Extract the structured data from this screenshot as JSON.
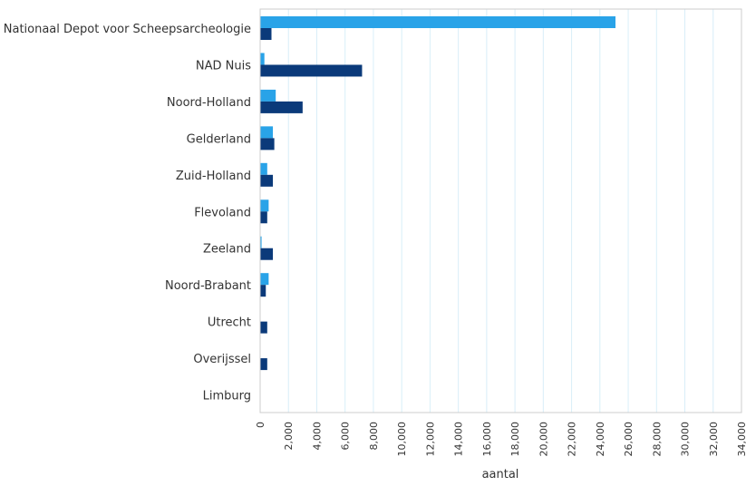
{
  "chart_data": {
    "type": "bar",
    "orientation": "horizontal",
    "xlabel": "aantal",
    "xlim": [
      0,
      34000
    ],
    "x_ticks": [
      "0",
      "2,000",
      "4,000",
      "6,000",
      "8,000",
      "10,000",
      "12,000",
      "14,000",
      "16,000",
      "18,000",
      "20,000",
      "22,000",
      "24,000",
      "26,000",
      "28,000",
      "30,000",
      "32,000",
      "34,000"
    ],
    "grid": true,
    "categories": [
      "Nationaal Depot voor Scheepsarcheologie",
      "NAD Nuis",
      "Noord-Holland",
      "Gelderland",
      "Zuid-Holland",
      "Flevoland",
      "Zeeland",
      "Noord-Brabant",
      "Utrecht",
      "Overijssel",
      "Limburg"
    ],
    "series": [
      {
        "color": "#29a3e8",
        "values": [
          25100,
          300,
          1100,
          900,
          500,
          600,
          100,
          600,
          0,
          0,
          0
        ]
      },
      {
        "color": "#0b3a7a",
        "values": [
          800,
          7200,
          3000,
          1000,
          900,
          500,
          900,
          400,
          500,
          500,
          0
        ]
      }
    ]
  }
}
